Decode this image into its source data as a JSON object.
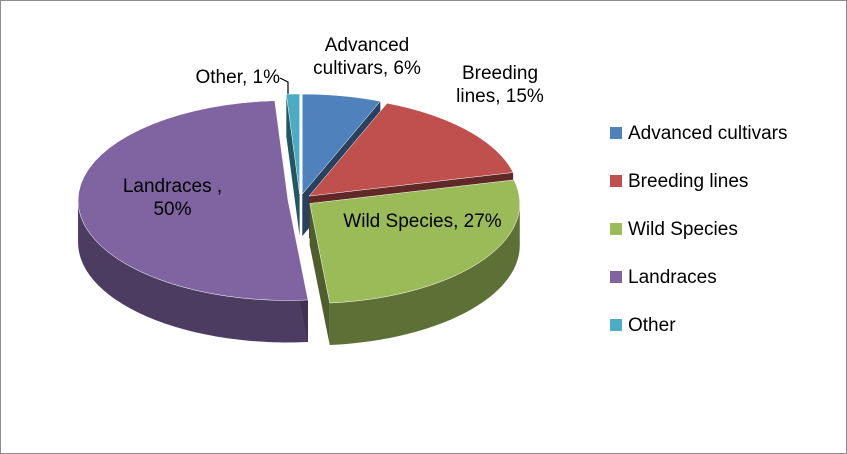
{
  "chart_data": {
    "type": "pie",
    "categories": [
      "Advanced cultivars",
      "Breeding lines",
      "Wild Species",
      "Landraces",
      "Other"
    ],
    "values": [
      6,
      15,
      27,
      50,
      1
    ],
    "value_labels": [
      "Advanced cultivars, 6%",
      "Breeding lines, 15%",
      "Wild Species, 27%",
      "Landraces , 50%",
      "Other, 1%"
    ],
    "colors": [
      "#4f81bd",
      "#c0504d",
      "#9bbb59",
      "#8064a2",
      "#4bacc6"
    ],
    "legend": "right"
  }
}
